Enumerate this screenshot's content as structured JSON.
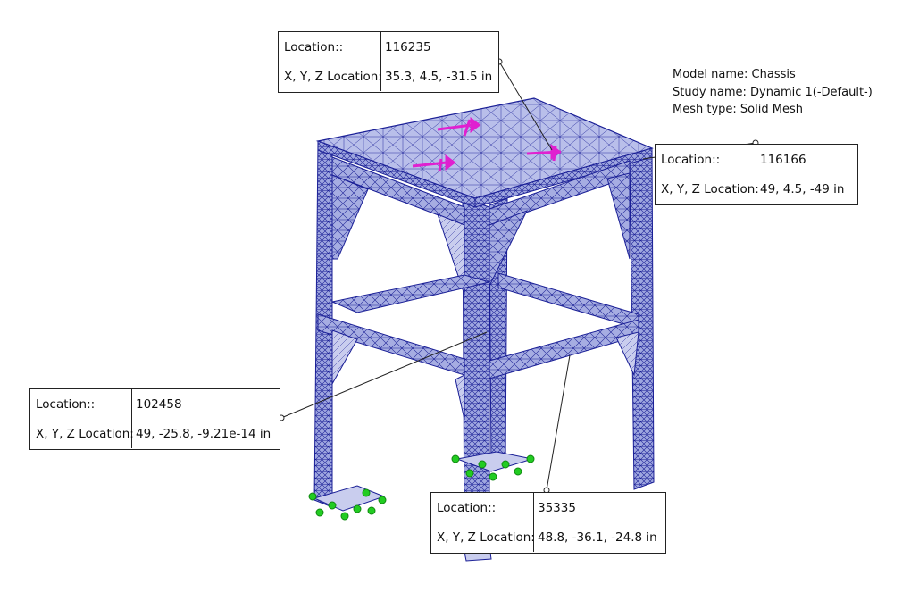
{
  "model_info": {
    "model_name": "Model name: Chassis",
    "study_name": "Study name: Dynamic 1(-Default-)",
    "mesh_type": "Mesh type: Solid Mesh"
  },
  "probes": [
    {
      "location_label": "Location::",
      "location_value": "116235",
      "xyz_label": "X, Y, Z Location:",
      "xyz_value": "35.3, 4.5, -31.5 in"
    },
    {
      "location_label": "Location::",
      "location_value": "116166",
      "xyz_label": "X, Y, Z Location:",
      "xyz_value": "49, 4.5, -49 in"
    },
    {
      "location_label": "Location::",
      "location_value": "102458",
      "xyz_label": "X, Y, Z Location:",
      "xyz_value": "49, -25.8, -9.21e-14 in"
    },
    {
      "location_label": "Location::",
      "location_value": "35335",
      "xyz_label": "X, Y, Z Location:",
      "xyz_value": "48.8, -36.1, -24.8 in"
    }
  ],
  "colors": {
    "mesh_fill": "#a9b0e3",
    "mesh_line": "#1a1f96",
    "load_arrow": "#e020d0",
    "fixture": "#22cc22"
  }
}
